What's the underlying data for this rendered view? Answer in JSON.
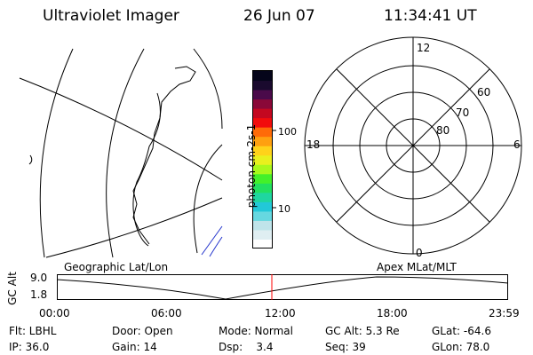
{
  "header": {
    "title": "Ultraviolet Imager",
    "date": "26 Jun 07",
    "time": "11:34:41 UT"
  },
  "colorbar": {
    "label": "photon cm-2s-1",
    "ticks": [
      "100",
      "10"
    ],
    "colors": [
      "#ffffff",
      "#dfeef2",
      "#bfe4ea",
      "#66d8e0",
      "#22c8d8",
      "#1fd6a0",
      "#22e060",
      "#44f02a",
      "#a8f81c",
      "#e8f01e",
      "#ffd21a",
      "#ffa010",
      "#ff6a08",
      "#f20c0c",
      "#c40820",
      "#8a0838",
      "#4a0a4a",
      "#1a0a2e",
      "#05051a"
    ]
  },
  "labels": {
    "geo": "Geographic Lat/Lon",
    "apex": "Apex MLat/MLT"
  },
  "polar": {
    "mlt_labels": [
      "12",
      "18",
      "6",
      "0"
    ],
    "lat_labels": [
      "60",
      "70",
      "80"
    ]
  },
  "timeline": {
    "axis_title": "GC Alt",
    "y_ticks": [
      "9.0",
      "1.8"
    ],
    "x_ticks": [
      "00:00",
      "06:00",
      "12:00",
      "18:00",
      "23:59"
    ],
    "marker_color": "#ff0000"
  },
  "status": {
    "row1": {
      "flt": "Flt: LBHL",
      "door": "Door: Open",
      "mode": "Mode: Normal",
      "gcalt": "GC Alt: 5.3 Re",
      "glat": "GLat: -64.6"
    },
    "row2": {
      "ip": "IP: 36.0",
      "gain": "Gain: 14",
      "dsp": "Dsp:    3.4",
      "seq": "Seq: 39",
      "glon": "GLon: 78.0"
    }
  }
}
